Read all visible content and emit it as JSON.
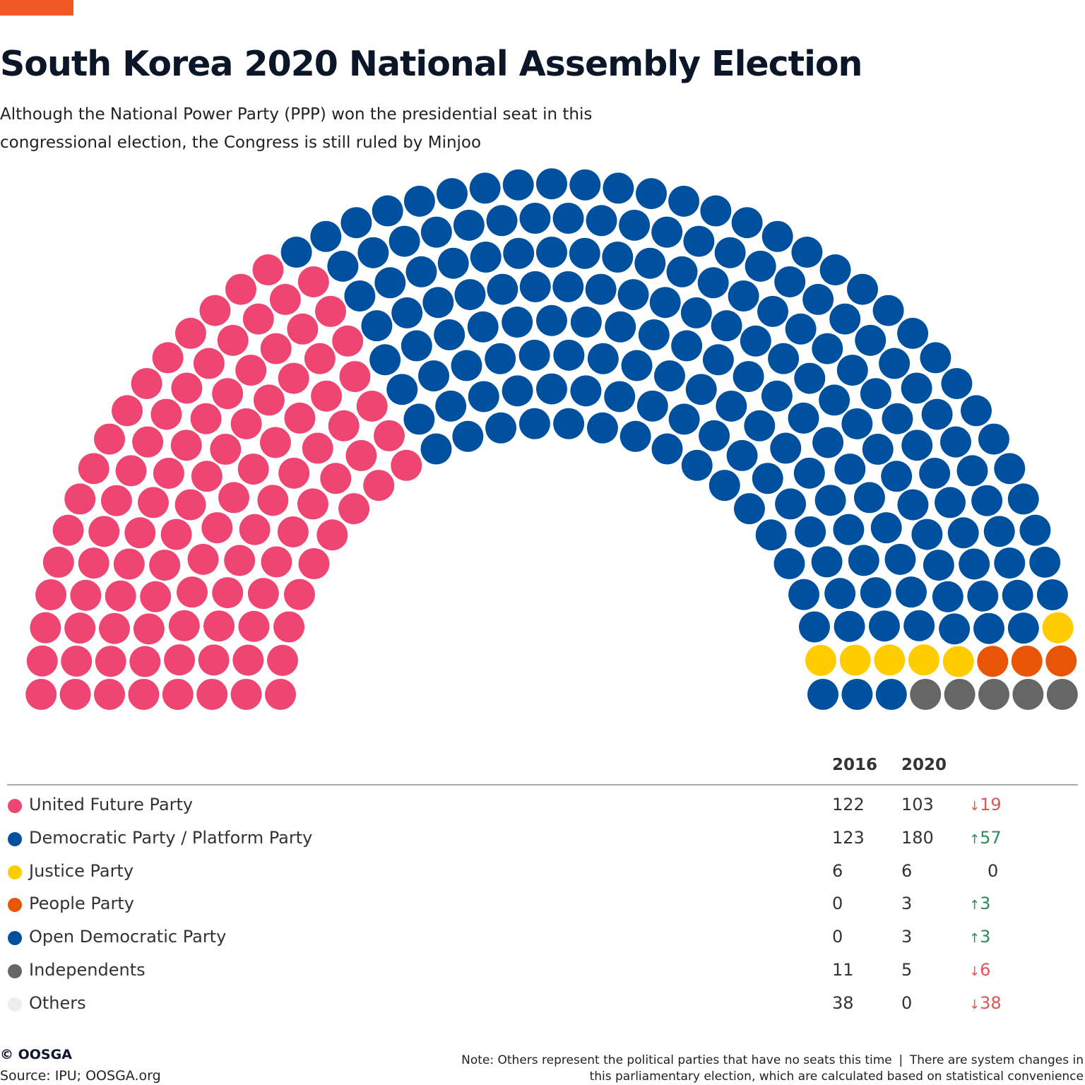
{
  "title": "South Korea 2020 National Assembly Election",
  "subtitle": "Although the National Power Party (PPP) won the presidential seat in this congressional election, the Congress is still ruled by Minjoo",
  "chart_data": {
    "type": "parliament",
    "total_seats": 300,
    "columns": [
      "2016",
      "2020"
    ],
    "series": [
      {
        "name": "United Future Party",
        "color": "#EE4572",
        "seats_2016": 122,
        "seats_2020": 103,
        "change": "19",
        "direction": "down"
      },
      {
        "name": "Democratic Party / Platform Party",
        "color": "#0050A0",
        "seats_2016": 123,
        "seats_2020": 180,
        "change": "57",
        "direction": "up"
      },
      {
        "name": "Justice Party",
        "color": "#FFCC00",
        "seats_2016": 6,
        "seats_2020": 6,
        "change": "0",
        "direction": "none"
      },
      {
        "name": "People Party",
        "color": "#E85504",
        "seats_2016": 0,
        "seats_2020": 3,
        "change": "3",
        "direction": "up"
      },
      {
        "name": "Open Democratic Party",
        "color": "#0050A0",
        "seats_2016": 0,
        "seats_2020": 3,
        "change": "3",
        "direction": "up"
      },
      {
        "name": "Independents",
        "color": "#666666",
        "seats_2016": 11,
        "seats_2020": 5,
        "change": "6",
        "direction": "down"
      },
      {
        "name": "Others",
        "color": "#EEEEEE",
        "seats_2016": 38,
        "seats_2020": 0,
        "change": "38",
        "direction": "down"
      }
    ]
  },
  "footer": {
    "copyright": "© OOSGA",
    "source": "Source: IPU; OOSGA.org",
    "note": "Note: Others represent the political parties that have no seats this time ❘ There are system changes in this parliamentary election, which are calculated based on statistical convenience"
  },
  "colors": {
    "accent": "#F05A22",
    "up": "#2E8B57",
    "down": "#E05555"
  }
}
